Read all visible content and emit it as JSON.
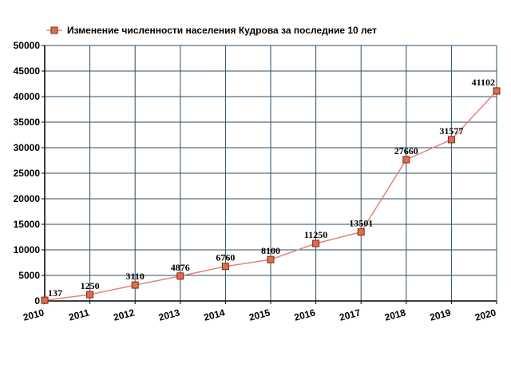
{
  "chart_data": {
    "type": "line",
    "title": "",
    "xlabel": "",
    "ylabel": "",
    "categories": [
      "2010",
      "2011",
      "2012",
      "2013",
      "2014",
      "2015",
      "2016",
      "2017",
      "2018",
      "2019",
      "2020"
    ],
    "series": [
      {
        "name": "Изменение численности населения Кудрова за последние 10 лет",
        "values": [
          137,
          1250,
          3110,
          4876,
          6760,
          8100,
          11250,
          13501,
          27660,
          31577,
          41102
        ],
        "labels": [
          "137",
          "1250",
          "3110",
          "4876",
          "6760",
          "8100",
          "11250",
          "13501",
          "27660",
          "31577",
          "41102"
        ]
      }
    ],
    "ylim": [
      0,
      50000
    ],
    "yticks": [
      0,
      5000,
      10000,
      15000,
      20000,
      25000,
      30000,
      35000,
      40000,
      45000,
      50000
    ],
    "ytick_labels": [
      "0",
      "5000",
      "10000",
      "15000",
      "20000",
      "25000",
      "30000",
      "35000",
      "40000",
      "45000",
      "50000"
    ],
    "grid": true,
    "legend_position": "top-left",
    "colors": {
      "line": "#e0857a",
      "marker_fill": "#e06d4a",
      "marker_stroke": "#7a2a14",
      "grid": "#2e4d66",
      "axis": "#000000"
    }
  }
}
